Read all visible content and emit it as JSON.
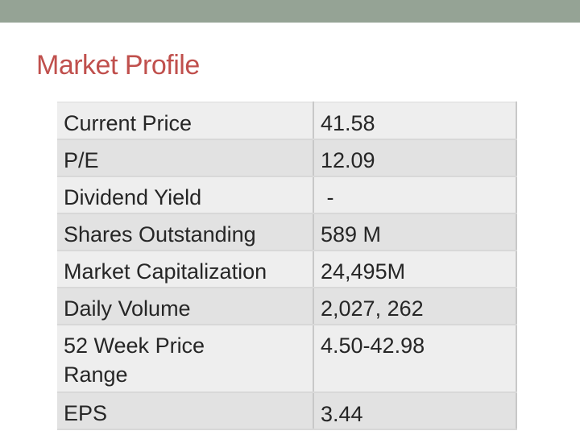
{
  "slide": {
    "title": "Market Profile",
    "accent_color": "#c0504d",
    "top_bar_color": "#95a395"
  },
  "table": {
    "rows": [
      {
        "label": "Current Price",
        "value": "41.58"
      },
      {
        "label": "P/E",
        "value": "12.09"
      },
      {
        "label": "Dividend Yield",
        "value": " -"
      },
      {
        "label": "Shares Outstanding",
        "value": "589 M"
      },
      {
        "label": "Market Capitalization",
        "value": "24,495M"
      },
      {
        "label": "Daily Volume",
        "value": "2,027, 262"
      },
      {
        "label": "52 Week Price Range",
        "value": "4.50-42.98"
      },
      {
        "label": "EPS",
        "value": "3.44"
      }
    ]
  }
}
